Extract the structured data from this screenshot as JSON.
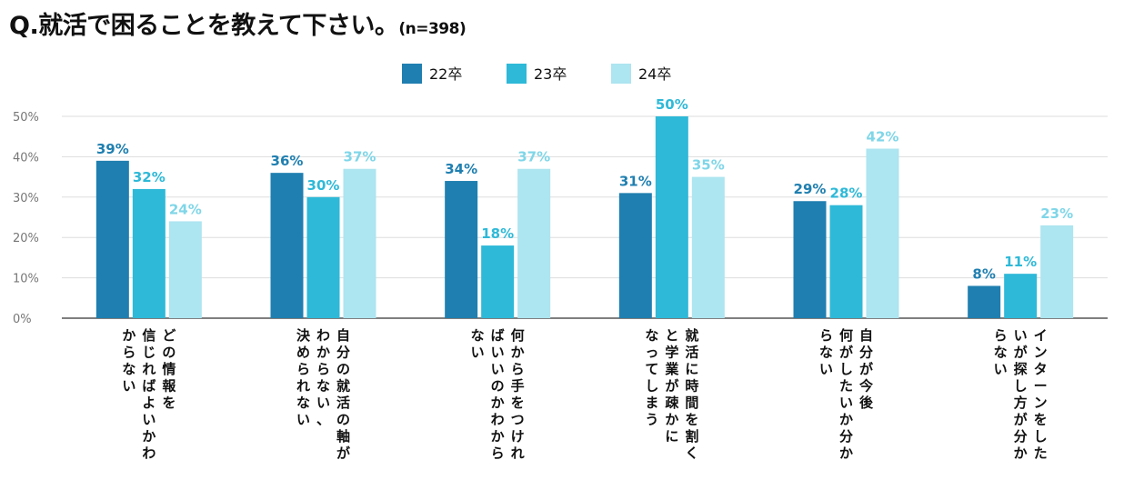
{
  "title": {
    "text": "Q.就活で困ることを教えて下さい。",
    "sample": "(n=398)"
  },
  "colors": {
    "series": [
      "#1f7fb0",
      "#2eb9d8",
      "#ade5f0"
    ],
    "labels": [
      "#1f7fb0",
      "#2eb9d8",
      "#7fd6e8"
    ],
    "grid": "#dddddd",
    "axis": "#555555",
    "tick": "#777777"
  },
  "chart_data": {
    "type": "bar",
    "title": "Q.就活で困ることを教えて下さい。(n=398)",
    "xlabel": "",
    "ylabel": "",
    "ylim": [
      0,
      50
    ],
    "yticks": [
      "0%",
      "10%",
      "20%",
      "30%",
      "40%",
      "50%"
    ],
    "grid": true,
    "legend_position": "top-center",
    "categories": [
      [
        "どの情報を",
        "信じればよいかわ",
        "からない"
      ],
      [
        "自分の就活の軸が",
        "わからない、",
        "決められない"
      ],
      [
        "何から手をつけれ",
        "ばいいのかわから",
        "ない"
      ],
      [
        "就活に時間を割く",
        "と学業が疎かに",
        "なってしまう"
      ],
      [
        "自分が今後",
        "何がしたいか分か",
        "らない"
      ],
      [
        "インターンをした",
        "いが探し方が分か",
        "らない"
      ]
    ],
    "series": [
      {
        "name": "22卒",
        "values": [
          39,
          36,
          34,
          31,
          29,
          8
        ]
      },
      {
        "name": "23卒",
        "values": [
          32,
          30,
          18,
          50,
          28,
          11
        ]
      },
      {
        "name": "24卒",
        "values": [
          24,
          37,
          37,
          35,
          42,
          23
        ]
      }
    ],
    "value_labels": [
      [
        "39%",
        "36%",
        "34%",
        "31%",
        "29%",
        "8%"
      ],
      [
        "32%",
        "30%",
        "18%",
        "50%",
        "28%",
        "11%"
      ],
      [
        "24%",
        "37%",
        "37%",
        "35%",
        "42%",
        "23%"
      ]
    ]
  }
}
